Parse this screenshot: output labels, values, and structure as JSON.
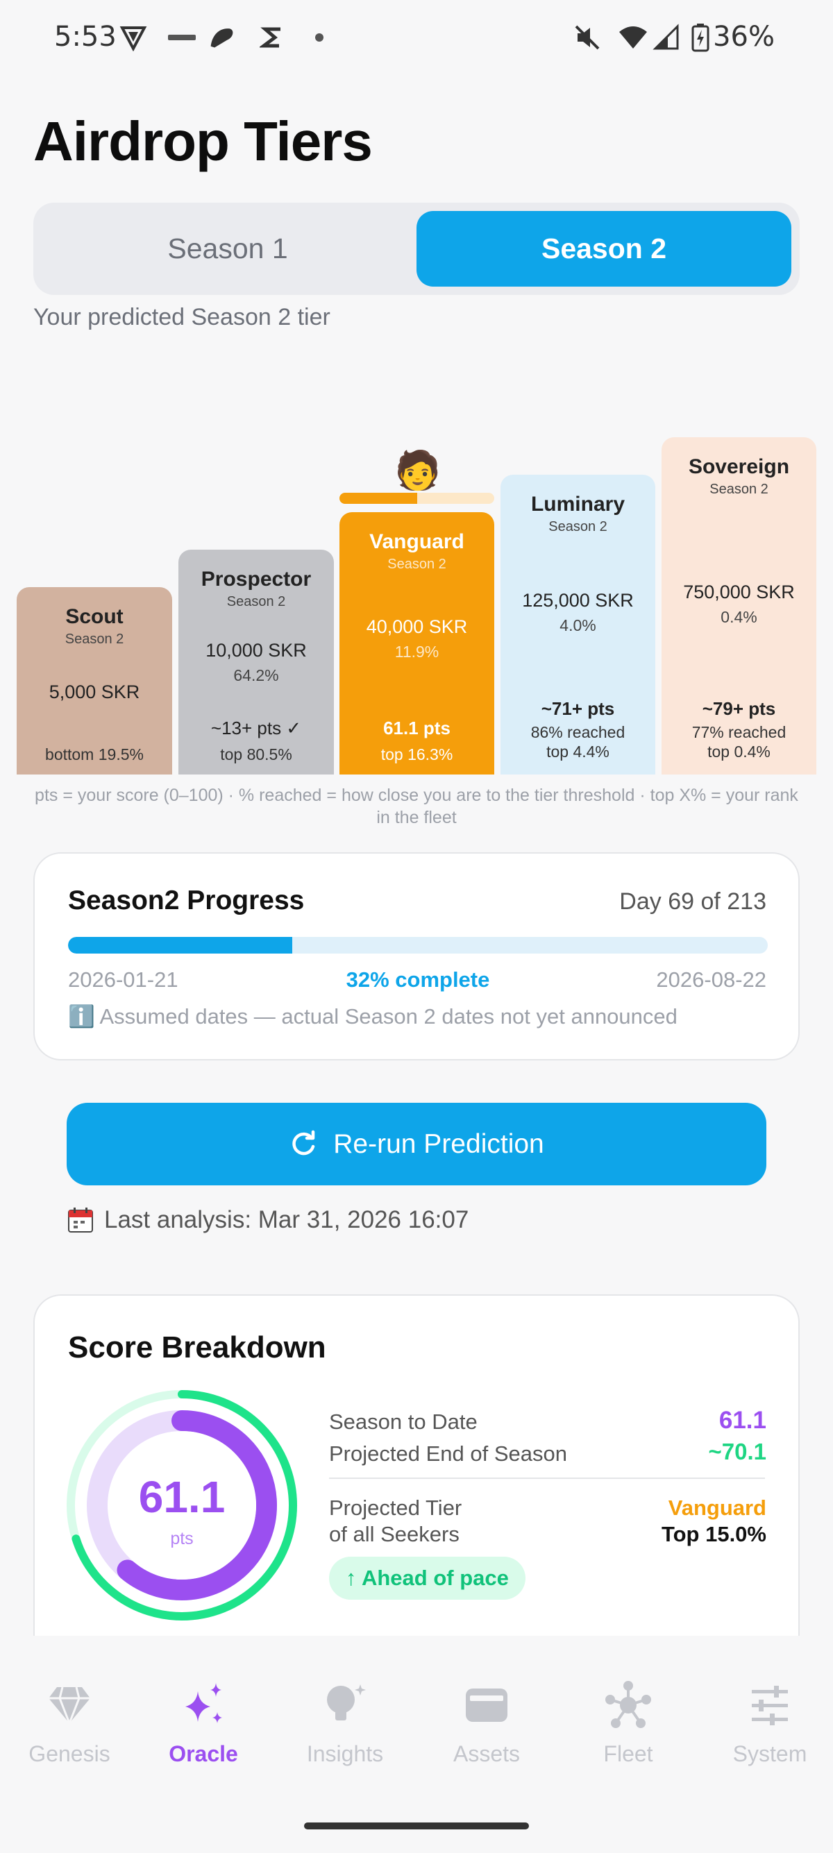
{
  "status_bar": {
    "time": "5:53",
    "battery": "36%"
  },
  "title": "Airdrop Tiers",
  "season_tabs": [
    {
      "label": "Season 1"
    },
    {
      "label": "Season 2",
      "active": true
    }
  ],
  "subtitle": "Your predicted Season 2 tier",
  "tiers": [
    {
      "name": "Scout",
      "season": "Season 2",
      "skr": "5,000 SKR",
      "pct": "",
      "pts": "",
      "reached": "",
      "top": "bottom 19.5%",
      "color": "#d2b29f"
    },
    {
      "name": "Prospector",
      "season": "Season 2",
      "skr": "10,000 SKR",
      "pct": "64.2%",
      "pts": "~13+ pts ✓",
      "reached": "",
      "top": "top 80.5%",
      "color": "#c3c4c8"
    },
    {
      "name": "Vanguard",
      "season": "Season 2",
      "skr": "40,000 SKR",
      "pct": "11.9%",
      "pts": "61.1 pts",
      "reached": "",
      "top": "top 16.3%",
      "color": "#f59e0b",
      "current": true
    },
    {
      "name": "Luminary",
      "season": "Season 2",
      "skr": "125,000 SKR",
      "pct": "4.0%",
      "pts": "~71+ pts",
      "reached": "86% reached",
      "top": "top 4.4%",
      "color": "#dbeef9"
    },
    {
      "name": "Sovereign",
      "season": "Season 2",
      "skr": "750,000 SKR",
      "pct": "0.4%",
      "pts": "~79+ pts",
      "reached": "77% reached",
      "top": "top 0.4%",
      "color": "#fbe6d9"
    }
  ],
  "user_marker": "🧑",
  "marker_progress": 0.5,
  "legend": "pts = your score (0–100)  ·  % reached = how close you are to the tier threshold  ·  top X% = your rank in the fleet",
  "progress": {
    "title": "Season2 Progress",
    "day": "Day 69 of 213",
    "start": "2026-01-21",
    "end": "2026-08-22",
    "percent_label": "32% complete",
    "fraction": 0.32,
    "note": "ℹ️ Assumed dates — actual Season 2 dates not yet announced"
  },
  "rerun_button": "Re-run Prediction",
  "last_analysis": "Last analysis: Mar 31, 2026 16:07",
  "breakdown": {
    "title": "Score Breakdown",
    "score": "61.1",
    "score_unit": "pts",
    "score_fraction": 0.611,
    "projected_fraction": 0.701,
    "season_to_date_label": "Season to Date",
    "season_to_date_value": "61.1",
    "projected_label": "Projected End of Season",
    "projected_value": "~70.1",
    "projected_tier_label": "Projected Tier",
    "projected_tier_value": "Vanguard",
    "all_seekers_label": "of all Seekers",
    "all_seekers_value": "Top 15.0%",
    "pace": "↑ Ahead of pace"
  },
  "nav": [
    {
      "label": "Genesis",
      "icon": "gem-icon"
    },
    {
      "label": "Oracle",
      "icon": "sparkles-icon",
      "active": true
    },
    {
      "label": "Insights",
      "icon": "lightbulb-icon"
    },
    {
      "label": "Assets",
      "icon": "wallet-icon"
    },
    {
      "label": "Fleet",
      "icon": "network-icon"
    },
    {
      "label": "System",
      "icon": "sliders-icon"
    }
  ]
}
